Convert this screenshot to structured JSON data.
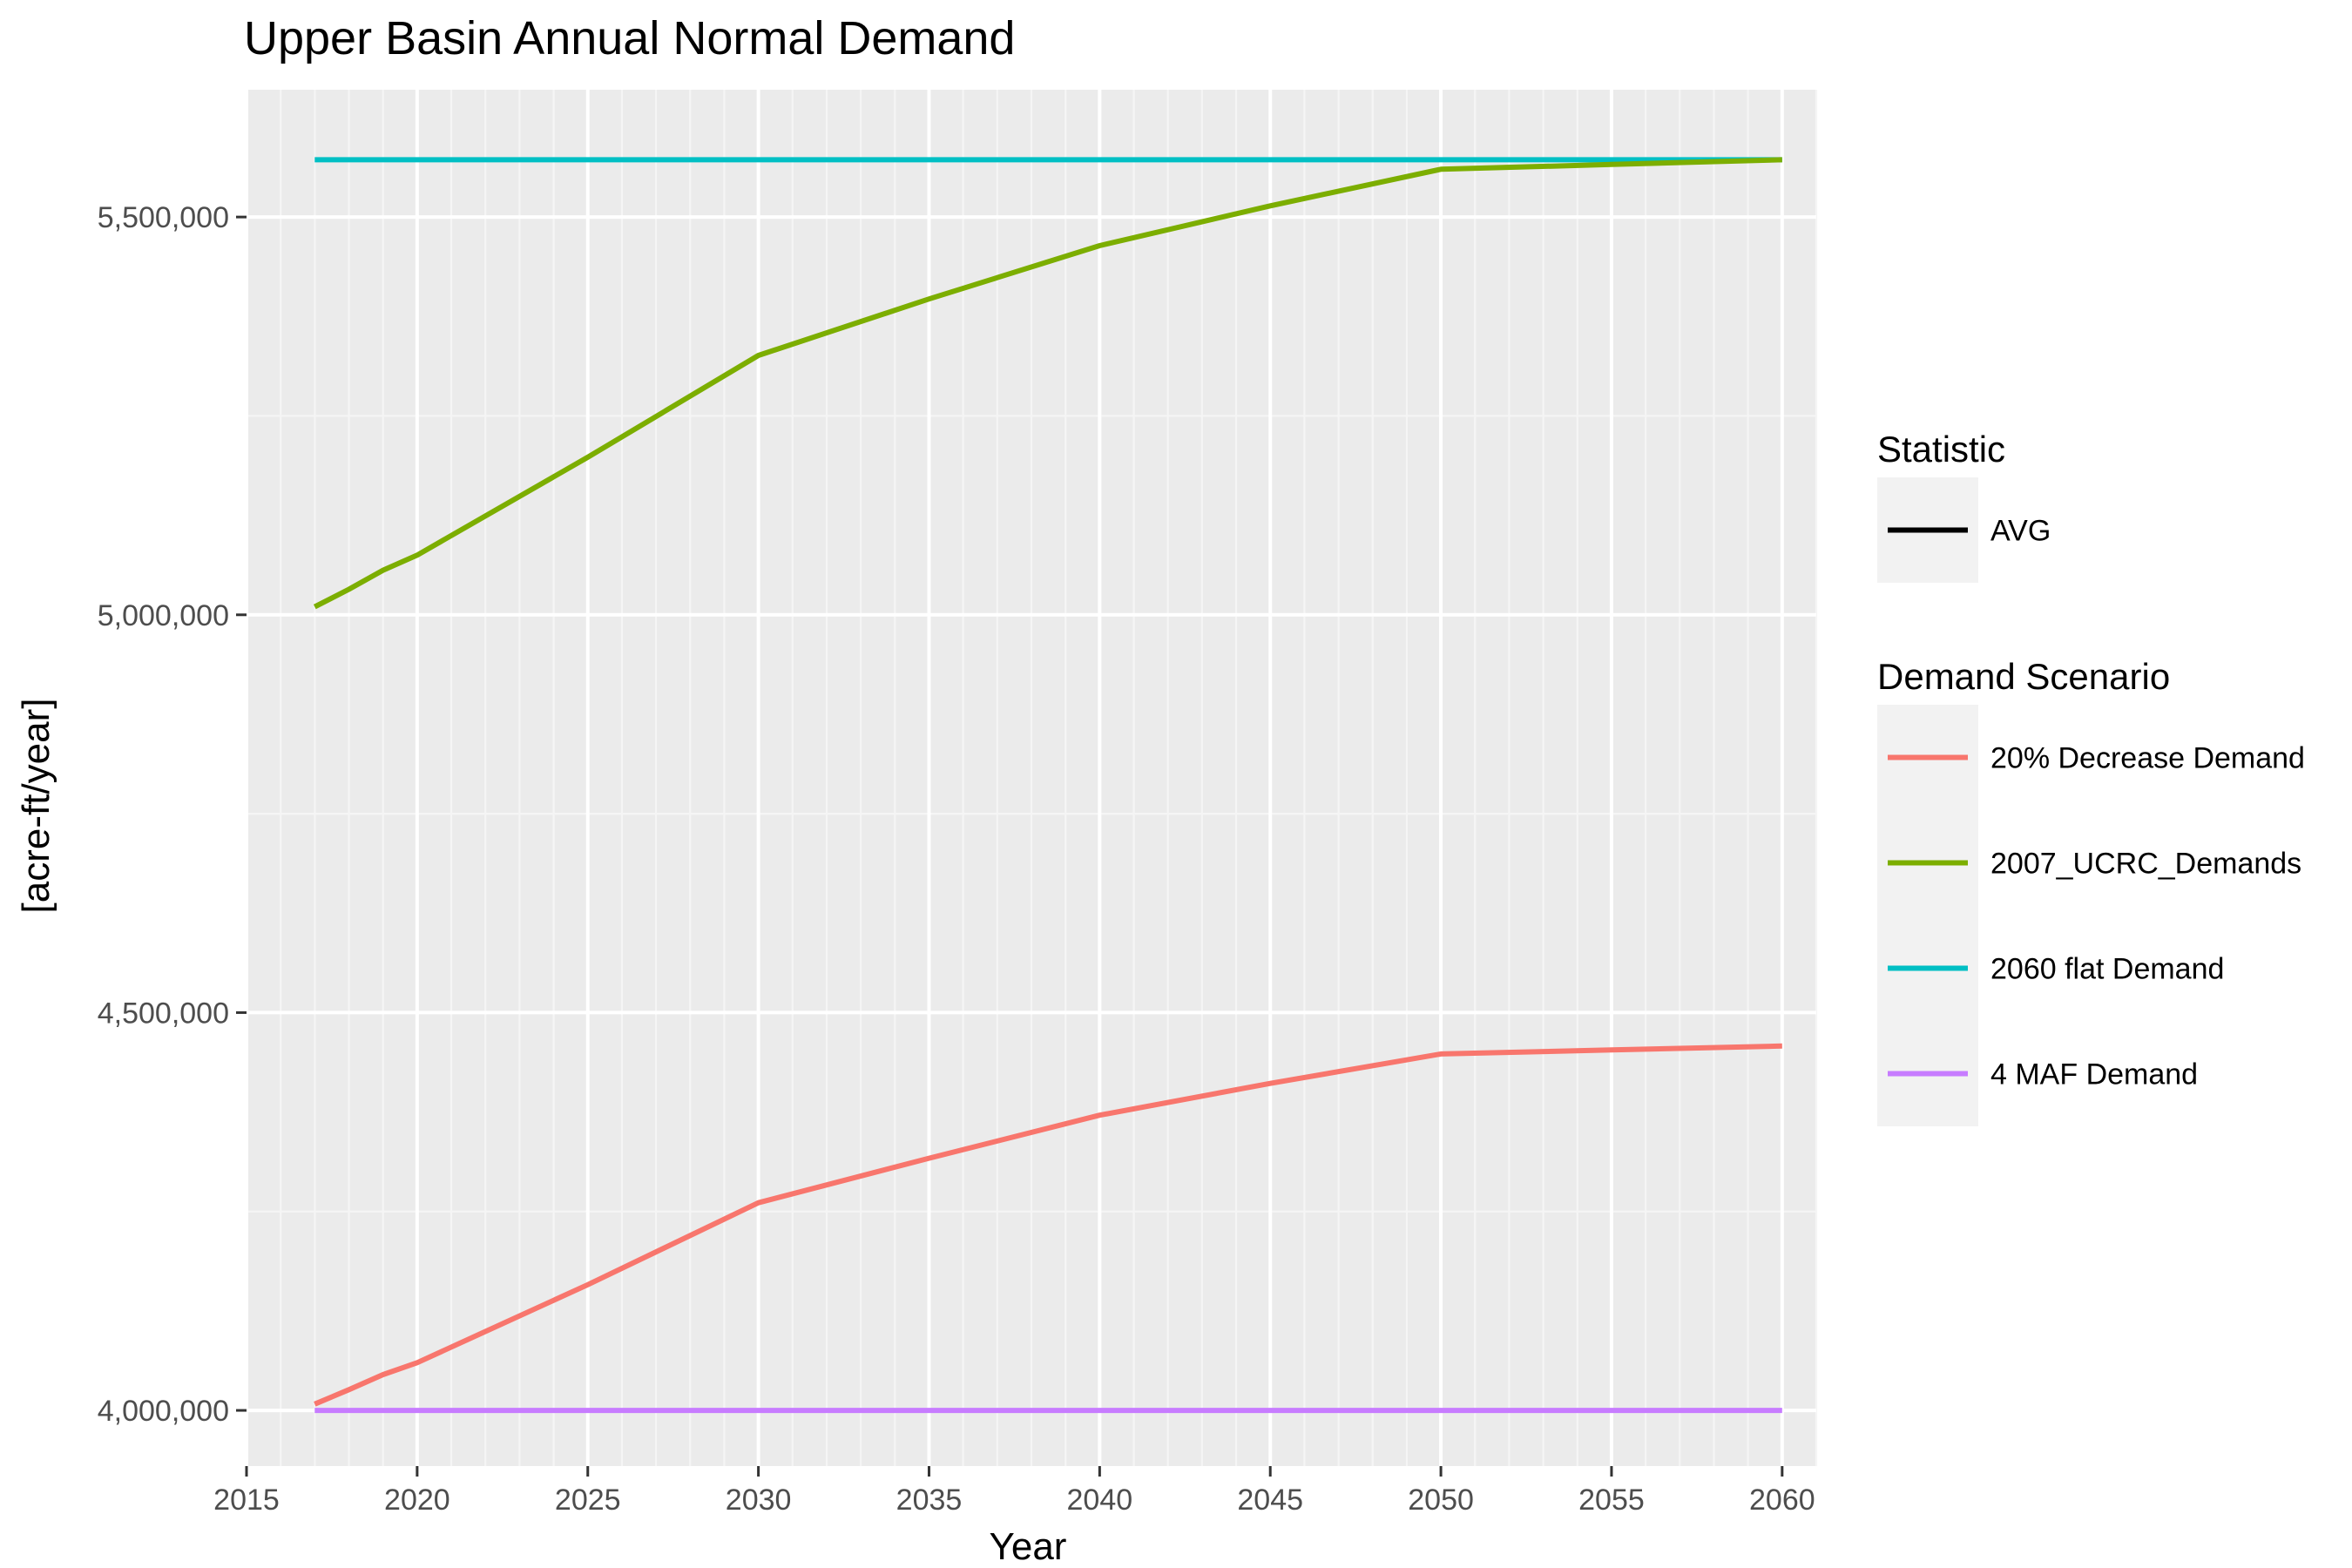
{
  "chart_data": {
    "type": "line",
    "title": "Upper Basin Annual Normal Demand",
    "xlabel": "Year",
    "ylabel": "[acre-ft/year]",
    "xlim": [
      2015,
      2061
    ],
    "ylim": [
      3930000,
      5660000
    ],
    "x_ticks": [
      2015,
      2020,
      2025,
      2030,
      2035,
      2040,
      2045,
      2050,
      2055,
      2060
    ],
    "x_tick_labels": [
      "2015",
      "2020",
      "2025",
      "2030",
      "2035",
      "2040",
      "2045",
      "2050",
      "2055",
      "2060"
    ],
    "y_ticks": [
      4000000,
      4500000,
      5000000,
      5500000
    ],
    "y_tick_labels": [
      "4,000,000",
      "4,500,000",
      "5,000,000",
      "5,500,000"
    ],
    "grid": true,
    "legend_position": "right",
    "legends": [
      {
        "title": "Statistic",
        "entries": [
          {
            "label": "AVG",
            "color": "#000000"
          }
        ]
      },
      {
        "title": "Demand Scenario",
        "entries": [
          {
            "label": "20% Decrease Demand",
            "color": "#F8766D"
          },
          {
            "label": "2007_UCRC_Demands",
            "color": "#7CAE00"
          },
          {
            "label": "2060 flat Demand",
            "color": "#00BFC4"
          },
          {
            "label": "4 MAF Demand",
            "color": "#C77CFF"
          }
        ]
      }
    ],
    "series": [
      {
        "name": "2060 flat Demand",
        "color": "#00BFC4",
        "x": [
          2017,
          2060
        ],
        "y": [
          5572000,
          5572000
        ]
      },
      {
        "name": "2007_UCRC_Demands",
        "color": "#7CAE00",
        "x": [
          2017,
          2018,
          2019,
          2020,
          2025,
          2030,
          2035,
          2040,
          2045,
          2050,
          2055,
          2060
        ],
        "y": [
          5010000,
          5032000,
          5056000,
          5075000,
          5198000,
          5326000,
          5397000,
          5464000,
          5514000,
          5560000,
          5566000,
          5572000
        ]
      },
      {
        "name": "20% Decrease Demand",
        "color": "#F8766D",
        "x": [
          2017,
          2018,
          2019,
          2020,
          2025,
          2030,
          2035,
          2040,
          2045,
          2050,
          2055,
          2060
        ],
        "y": [
          4008000,
          4026000,
          4045000,
          4060000,
          4158000,
          4261000,
          4317000,
          4371000,
          4411000,
          4448000,
          4453000,
          4458000
        ]
      },
      {
        "name": "4 MAF Demand",
        "color": "#C77CFF",
        "x": [
          2017,
          2060
        ],
        "y": [
          4000000,
          4000000
        ]
      }
    ]
  }
}
